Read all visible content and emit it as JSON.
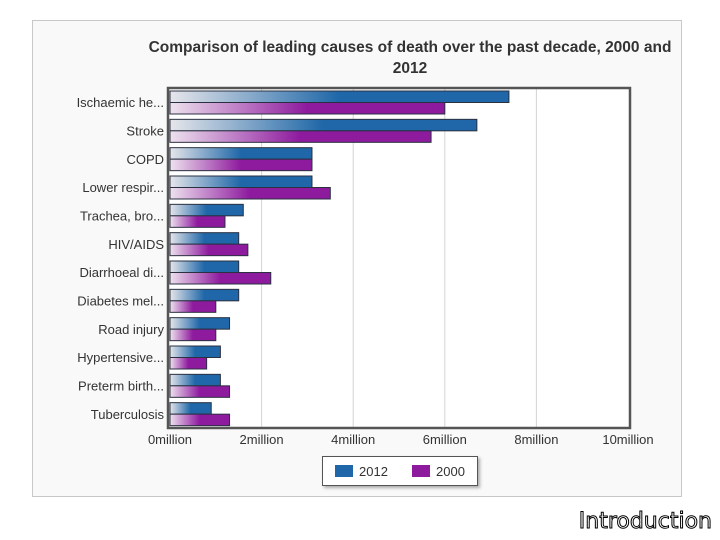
{
  "chart_data": {
    "type": "bar",
    "orientation": "horizontal",
    "title": "Comparison of leading causes of death over the past decade, 2000 and 2012",
    "categories": [
      "Ischaemic he...",
      "Stroke",
      "COPD",
      "Lower respir...",
      "Trachea, bro...",
      "HIV/AIDS",
      "Diarrhoeal di...",
      "Diabetes mel...",
      "Road injury",
      "Hypertensive...",
      "Preterm birth...",
      "Tuberculosis"
    ],
    "series": [
      {
        "name": "2012",
        "color": "#1f67a8",
        "values": [
          7.4,
          6.7,
          3.1,
          3.1,
          1.6,
          1.5,
          1.5,
          1.5,
          1.3,
          1.1,
          1.1,
          0.9
        ]
      },
      {
        "name": "2000",
        "color": "#8e1a9e",
        "values": [
          6.0,
          5.7,
          3.1,
          3.5,
          1.2,
          1.7,
          2.2,
          1.0,
          1.0,
          0.8,
          1.3,
          1.3
        ]
      }
    ],
    "xlim": [
      0,
      10
    ],
    "xticks": [
      "0million",
      "2million",
      "4million",
      "6million",
      "8million",
      "10million"
    ],
    "grid": true,
    "legend": "bottom"
  },
  "footer": "Introduction"
}
